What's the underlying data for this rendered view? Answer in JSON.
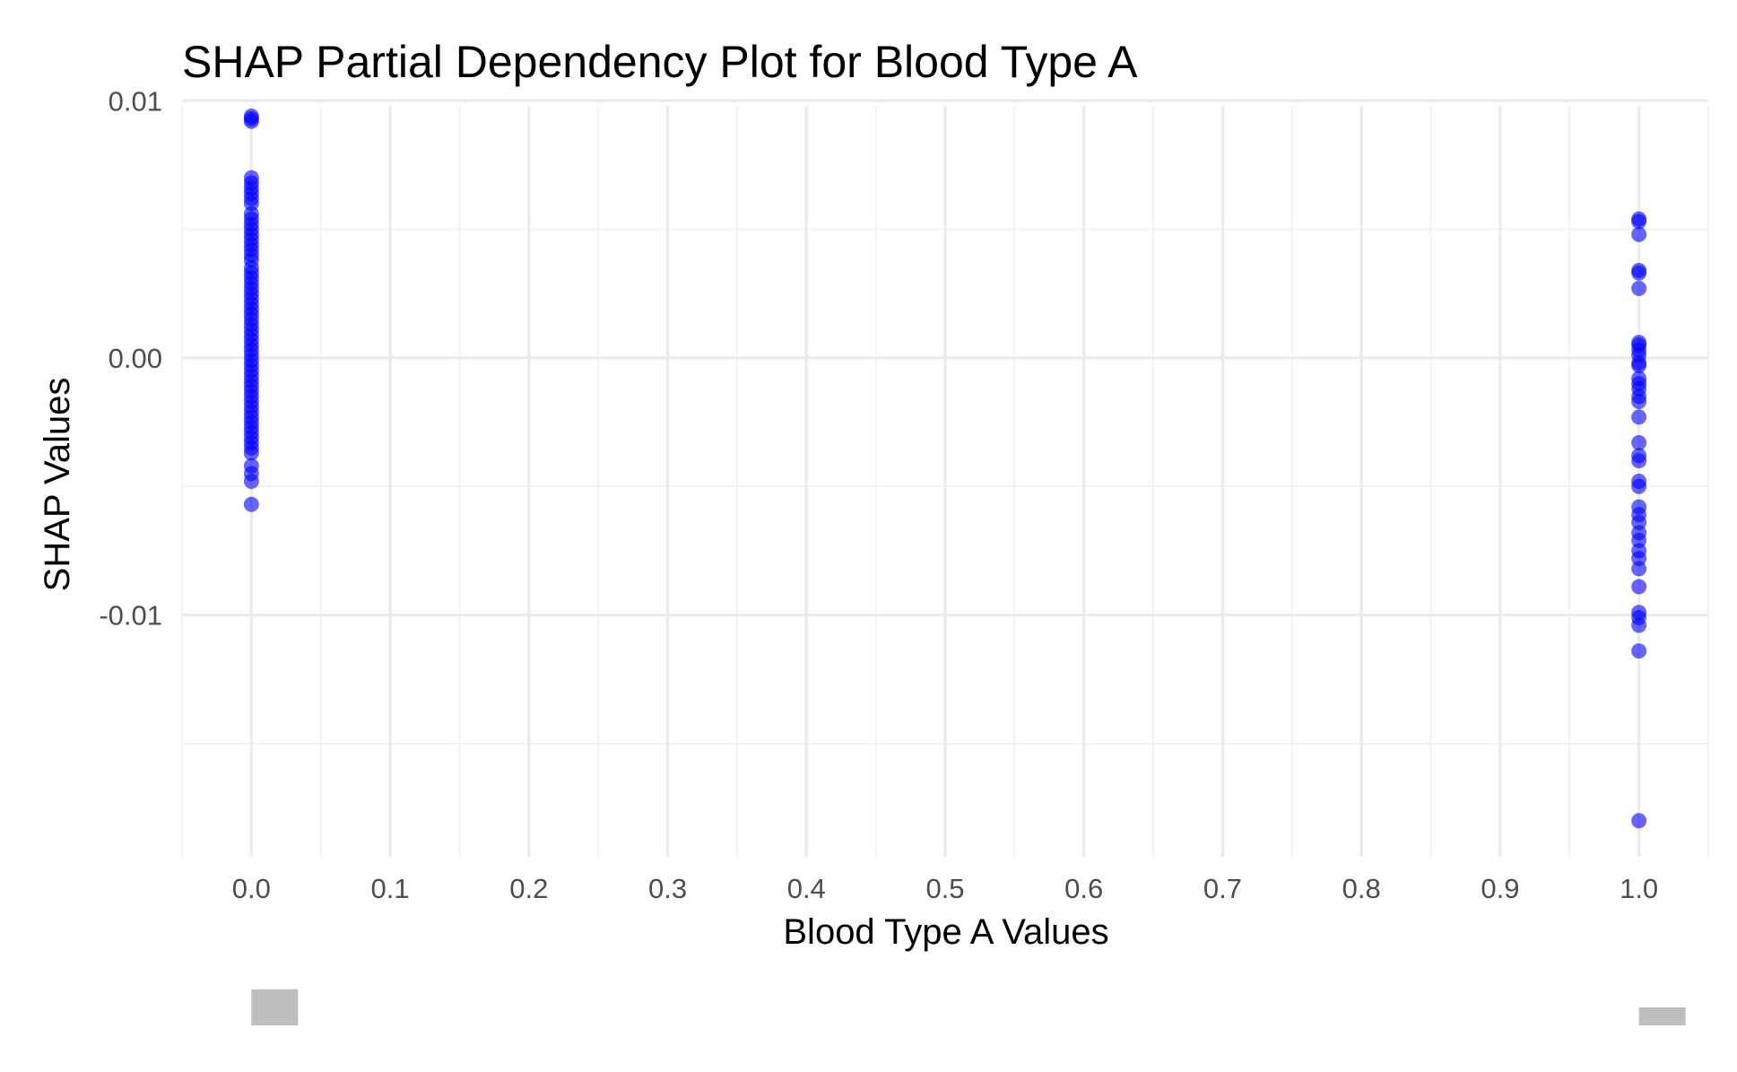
{
  "chart_data": {
    "type": "scatter",
    "title": "SHAP Partial Dependency Plot for Blood Type A",
    "xlabel": "Blood Type A Values",
    "ylabel": "SHAP Values",
    "xlim": [
      -0.05,
      1.05
    ],
    "ylim": [
      -0.0194,
      0.0098
    ],
    "x_ticks": [
      0.0,
      0.1,
      0.2,
      0.3,
      0.4,
      0.5,
      0.6,
      0.7,
      0.8,
      0.9,
      1.0
    ],
    "x_tick_labels": [
      "0.0",
      "0.1",
      "0.2",
      "0.3",
      "0.4",
      "0.5",
      "0.6",
      "0.7",
      "0.8",
      "0.9",
      "1.0"
    ],
    "y_ticks": [
      0.01,
      0.0,
      -0.01
    ],
    "y_tick_labels": [
      "0.01",
      "0.00",
      "-0.01"
    ],
    "y_minor_ticks": [
      0.005,
      -0.005,
      -0.015
    ],
    "grid": true,
    "point_color": "#0000ff",
    "point_alpha": 0.6,
    "series": [
      {
        "x_value": 0.0,
        "y": [
          0.0094,
          0.0093,
          0.0092,
          0.007,
          0.0068,
          0.0066,
          0.0064,
          0.0062,
          0.006,
          0.0056,
          0.0054,
          0.0052,
          0.005,
          0.0048,
          0.0046,
          0.0044,
          0.0042,
          0.004,
          0.0038,
          0.0035,
          0.0033,
          0.0031,
          0.0029,
          0.0027,
          0.0025,
          0.0023,
          0.0021,
          0.0019,
          0.0017,
          0.0015,
          0.0013,
          0.0011,
          0.0009,
          0.0007,
          0.0005,
          0.0003,
          0.0001,
          -0.0001,
          -0.0003,
          -0.0005,
          -0.0007,
          -0.0009,
          -0.0011,
          -0.0013,
          -0.0015,
          -0.0017,
          -0.0019,
          -0.0021,
          -0.0023,
          -0.0025,
          -0.0027,
          -0.0029,
          -0.0031,
          -0.0033,
          -0.0035,
          -0.0037,
          -0.0042,
          -0.0045,
          -0.0048,
          -0.0057
        ]
      },
      {
        "x_value": 1.0,
        "y": [
          0.0054,
          0.0053,
          0.0048,
          0.0034,
          0.0033,
          0.0027,
          0.0006,
          0.0005,
          0.0003,
          0.0001,
          -0.0002,
          -0.0003,
          -0.0008,
          -0.001,
          -0.0012,
          -0.0015,
          -0.0017,
          -0.0023,
          -0.0033,
          -0.0038,
          -0.004,
          -0.0048,
          -0.005,
          -0.0058,
          -0.0061,
          -0.0064,
          -0.0068,
          -0.0071,
          -0.0075,
          -0.0078,
          -0.0082,
          -0.0089,
          -0.0099,
          -0.0101,
          -0.0104,
          -0.0114,
          -0.018
        ]
      }
    ],
    "rug_marks": [
      {
        "x": 0.0,
        "height": 0.0014
      },
      {
        "x": 1.0,
        "height": 0.0007
      }
    ]
  }
}
